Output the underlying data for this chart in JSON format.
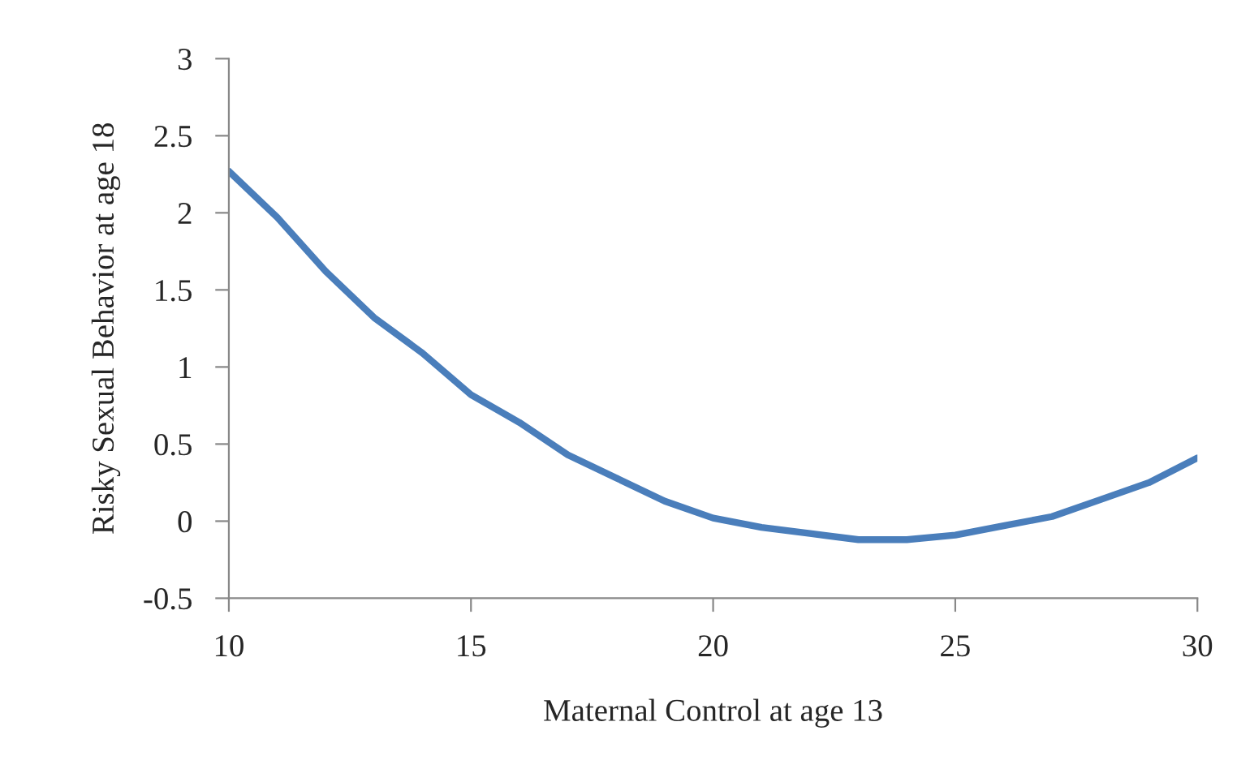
{
  "chart_data": {
    "type": "line",
    "xlabel": "Maternal Control at age 13",
    "ylabel": "Risky Sexual Behavior at age 18",
    "x": [
      10,
      11,
      12,
      13,
      14,
      15,
      16,
      17,
      18,
      19,
      20,
      21,
      22,
      23,
      24,
      25,
      26,
      27,
      28,
      29,
      30
    ],
    "series": [
      {
        "color": "#4a7ebb",
        "values": [
          2.27,
          1.97,
          1.62,
          1.32,
          1.09,
          0.82,
          0.64,
          0.43,
          0.28,
          0.13,
          0.02,
          -0.04,
          -0.08,
          -0.12,
          -0.12,
          -0.09,
          -0.03,
          0.03,
          0.14,
          0.25,
          0.41
        ]
      }
    ],
    "xlim": [
      10,
      30
    ],
    "xticks": [
      10,
      15,
      20,
      25,
      30
    ],
    "ylim": [
      -0.5,
      3
    ],
    "yticks": [
      -0.5,
      0,
      0.5,
      1,
      1.5,
      2,
      2.5,
      3
    ],
    "line_style": "solid"
  }
}
